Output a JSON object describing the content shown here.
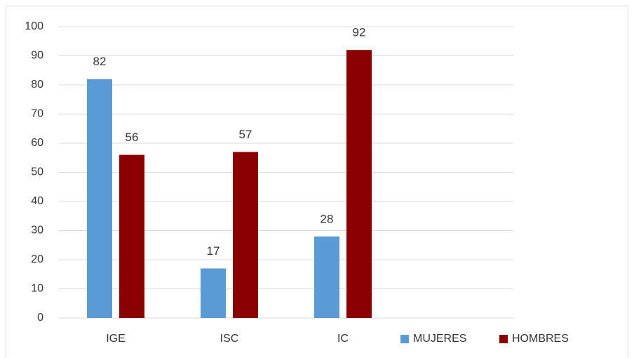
{
  "chart_data": {
    "type": "bar",
    "categories": [
      "IGE",
      "ISC",
      "IC",
      null
    ],
    "series": [
      {
        "name": "MUJERES",
        "color": "#5b9bd5",
        "values": [
          82,
          17,
          28,
          null
        ]
      },
      {
        "name": "HOMBRES",
        "color": "#8b0000",
        "values": [
          56,
          57,
          92,
          null
        ]
      }
    ],
    "ylim": [
      0,
      100
    ],
    "yticks": [
      0,
      10,
      20,
      30,
      40,
      50,
      60,
      70,
      80,
      90,
      100
    ],
    "grid": true,
    "legend": "bottom-right"
  }
}
